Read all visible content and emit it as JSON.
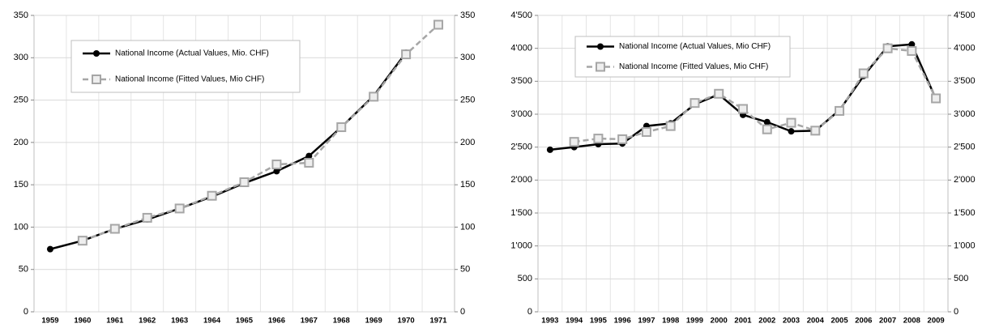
{
  "chart_data": [
    {
      "type": "line",
      "categories": [
        "1959",
        "1960",
        "1961",
        "1962",
        "1963",
        "1964",
        "1965",
        "1966",
        "1967",
        "1968",
        "1969",
        "1970",
        "1971"
      ],
      "series": [
        {
          "name": "National Income (Actual Values, Mio. CHF)",
          "color": "#000000",
          "marker": "circle",
          "dashed": false,
          "values": [
            74,
            84,
            98,
            109,
            122,
            136,
            152,
            166,
            184,
            218,
            255,
            306,
            null
          ]
        },
        {
          "name": "National Income (Fitted Values, Mio CHF)",
          "color": "#a6a6a6",
          "marker": "square",
          "dashed": true,
          "values": [
            null,
            84,
            98,
            111,
            122,
            137,
            153,
            174,
            176,
            218,
            254,
            304,
            339
          ]
        }
      ],
      "ylim": [
        0,
        350
      ],
      "yticks": [
        0,
        50,
        100,
        150,
        200,
        250,
        300,
        350
      ],
      "grid": true,
      "mirror_y_axis": true,
      "legend": "top-left"
    },
    {
      "type": "line",
      "categories": [
        "1993",
        "1994",
        "1995",
        "1996",
        "1997",
        "1998",
        "1999",
        "2000",
        "2001",
        "2002",
        "2003",
        "2004",
        "2005",
        "2006",
        "2007",
        "2008",
        "2009"
      ],
      "series": [
        {
          "name": "National Income (Actual Values, Mio CHF)",
          "color": "#000000",
          "marker": "circle",
          "dashed": false,
          "values": [
            2460,
            2500,
            2545,
            2555,
            2820,
            2860,
            3150,
            3300,
            2990,
            2880,
            2740,
            2750,
            3060,
            3580,
            4030,
            4060,
            3230
          ]
        },
        {
          "name": "National Income (Fitted Values, Mio CHF)",
          "color": "#a6a6a6",
          "marker": "square",
          "dashed": true,
          "values": [
            null,
            2580,
            2630,
            2620,
            2730,
            2820,
            3170,
            3310,
            3080,
            2770,
            2870,
            2750,
            3050,
            3620,
            4000,
            3960,
            3240
          ]
        }
      ],
      "ylim": [
        0,
        4500
      ],
      "yticks": [
        0,
        500,
        {
          "value": 1000,
          "label": "1'000"
        },
        {
          "value": 1500,
          "label": "1'500"
        },
        {
          "value": 2000,
          "label": "2'000"
        },
        {
          "value": 2500,
          "label": "2'500"
        },
        {
          "value": 3000,
          "label": "3'000"
        },
        {
          "value": 3500,
          "label": "3'500"
        },
        {
          "value": 4000,
          "label": "4'000"
        },
        {
          "value": 4500,
          "label": "4'500"
        }
      ],
      "grid": true,
      "mirror_y_axis": true,
      "legend": "top-left"
    }
  ]
}
